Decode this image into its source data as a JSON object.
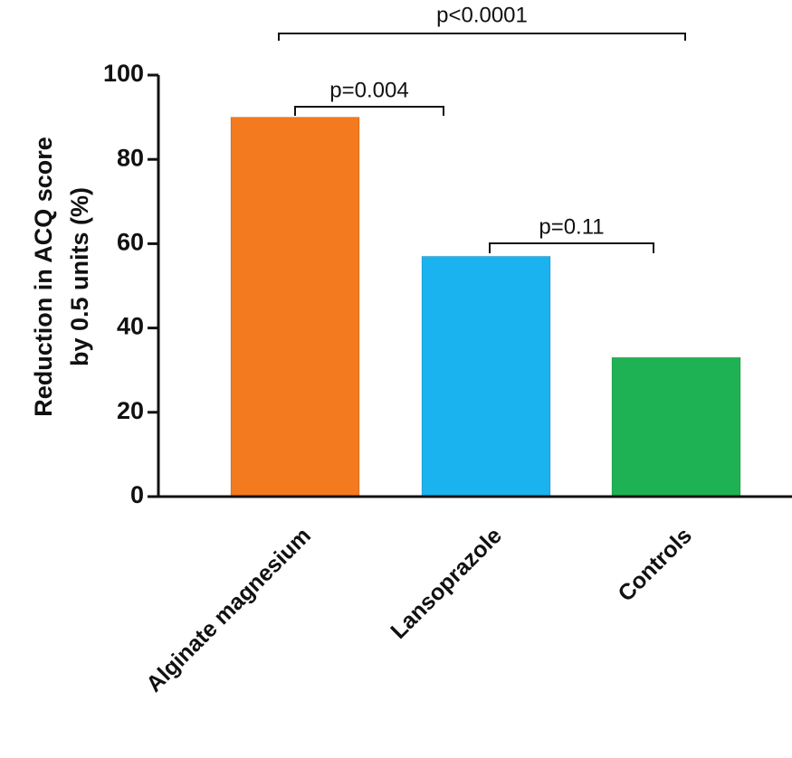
{
  "chart_data": {
    "type": "bar",
    "y_label": [
      "Reduction in ACQ score",
      "by 0.5 units (%)"
    ],
    "categories": [
      "Alginate magnesium",
      "Lansoprazole",
      "Controls"
    ],
    "values": [
      90,
      57,
      33
    ],
    "colors": [
      "#f47a20",
      "#1ab3ef",
      "#1fb254"
    ],
    "ylim": [
      0,
      100
    ],
    "yticks": [
      0,
      20,
      40,
      60,
      80,
      100
    ],
    "annotations": [
      "p<0.0001",
      "p=0.004",
      "p=0.11"
    ]
  }
}
